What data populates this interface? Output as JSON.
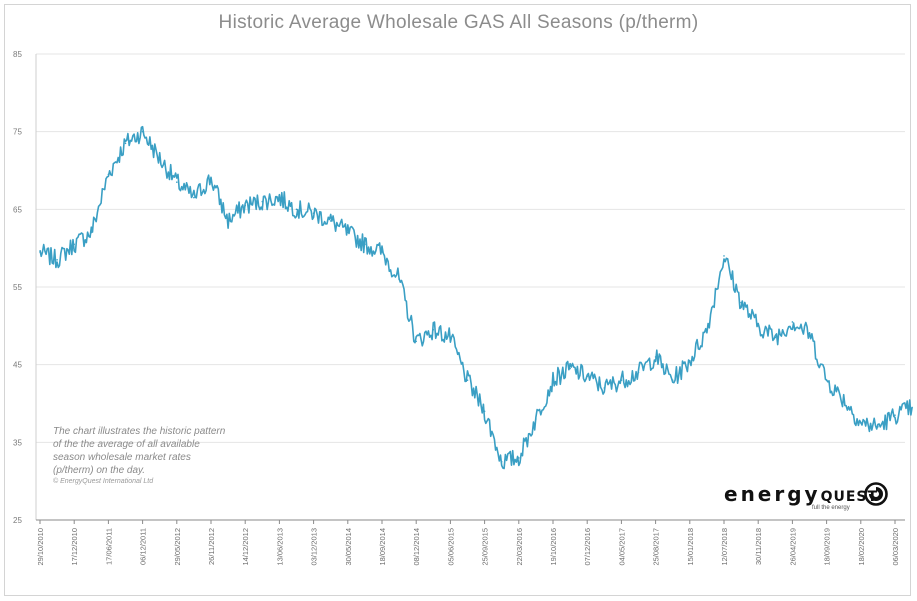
{
  "chart_data": {
    "type": "line",
    "title": "Historic Average Wholesale GAS All Seasons (p/therm)",
    "xlabel": "",
    "ylabel": "",
    "ylim": [
      25,
      85
    ],
    "y_ticks": [
      "85",
      "75",
      "65",
      "55",
      "45",
      "35",
      "25"
    ],
    "x_tick_labels": [
      "29/10/2010",
      "17/12/2010",
      "17/06/2011",
      "06/12/2011",
      "29/05/2012",
      "26/11/2012",
      "14/12/2012",
      "13/06/2013",
      "03/12/2013",
      "30/05/2014",
      "18/09/2014",
      "08/12/2014",
      "05/06/2015",
      "25/09/2015",
      "22/03/2016",
      "19/10/2016",
      "07/12/2016",
      "04/05/2017",
      "25/08/2017",
      "15/01/2018",
      "12/07/2018",
      "30/11/2018",
      "26/04/2019",
      "18/09/2019",
      "18/02/2020",
      "06/03/2020"
    ],
    "grid": "horizontal",
    "series": [
      {
        "color": "#3a9fc4",
        "keypoints_x": [
          0,
          0.5,
          1,
          1.5,
          2,
          2.5,
          3,
          3.5,
          4,
          4.5,
          5,
          5.5,
          6,
          6.5,
          7,
          7.5,
          8,
          8.5,
          9,
          9.5,
          10,
          10.5,
          11,
          11.5,
          12,
          12.5,
          13,
          13.5,
          14,
          14.5,
          15,
          15.5,
          16,
          16.5,
          17,
          17.5,
          18,
          18.5,
          19,
          19.5,
          20,
          20.5,
          21,
          21.5,
          22,
          22.5,
          23,
          23.5,
          24,
          24.5,
          25,
          25.5
        ],
        "values": [
          59.5,
          58.5,
          60.5,
          62,
          69.5,
          73.5,
          75,
          71.5,
          68.5,
          66.5,
          69,
          63.5,
          65.5,
          66,
          66.5,
          65,
          64.5,
          63.5,
          62,
          60.5,
          59.5,
          56,
          48,
          49.5,
          48.5,
          43,
          39,
          32.5,
          33,
          38,
          43,
          44.5,
          43.5,
          42,
          43,
          44,
          46,
          43,
          45.5,
          49.5,
          59,
          53,
          50,
          48.5,
          50.5,
          49,
          43,
          40.5,
          37.5,
          37,
          38.5,
          39.5
        ]
      }
    ]
  },
  "annotation": {
    "lines": [
      "The chart illustrates the historic pattern",
      "of the the average of all available",
      "season wholesale market rates",
      "(p/therm) on the day."
    ],
    "copyright": "© EnergyQuest International Ltd"
  },
  "logo": {
    "word_start": "energy",
    "word_end": "QUEST",
    "tagline": "full the energy"
  }
}
